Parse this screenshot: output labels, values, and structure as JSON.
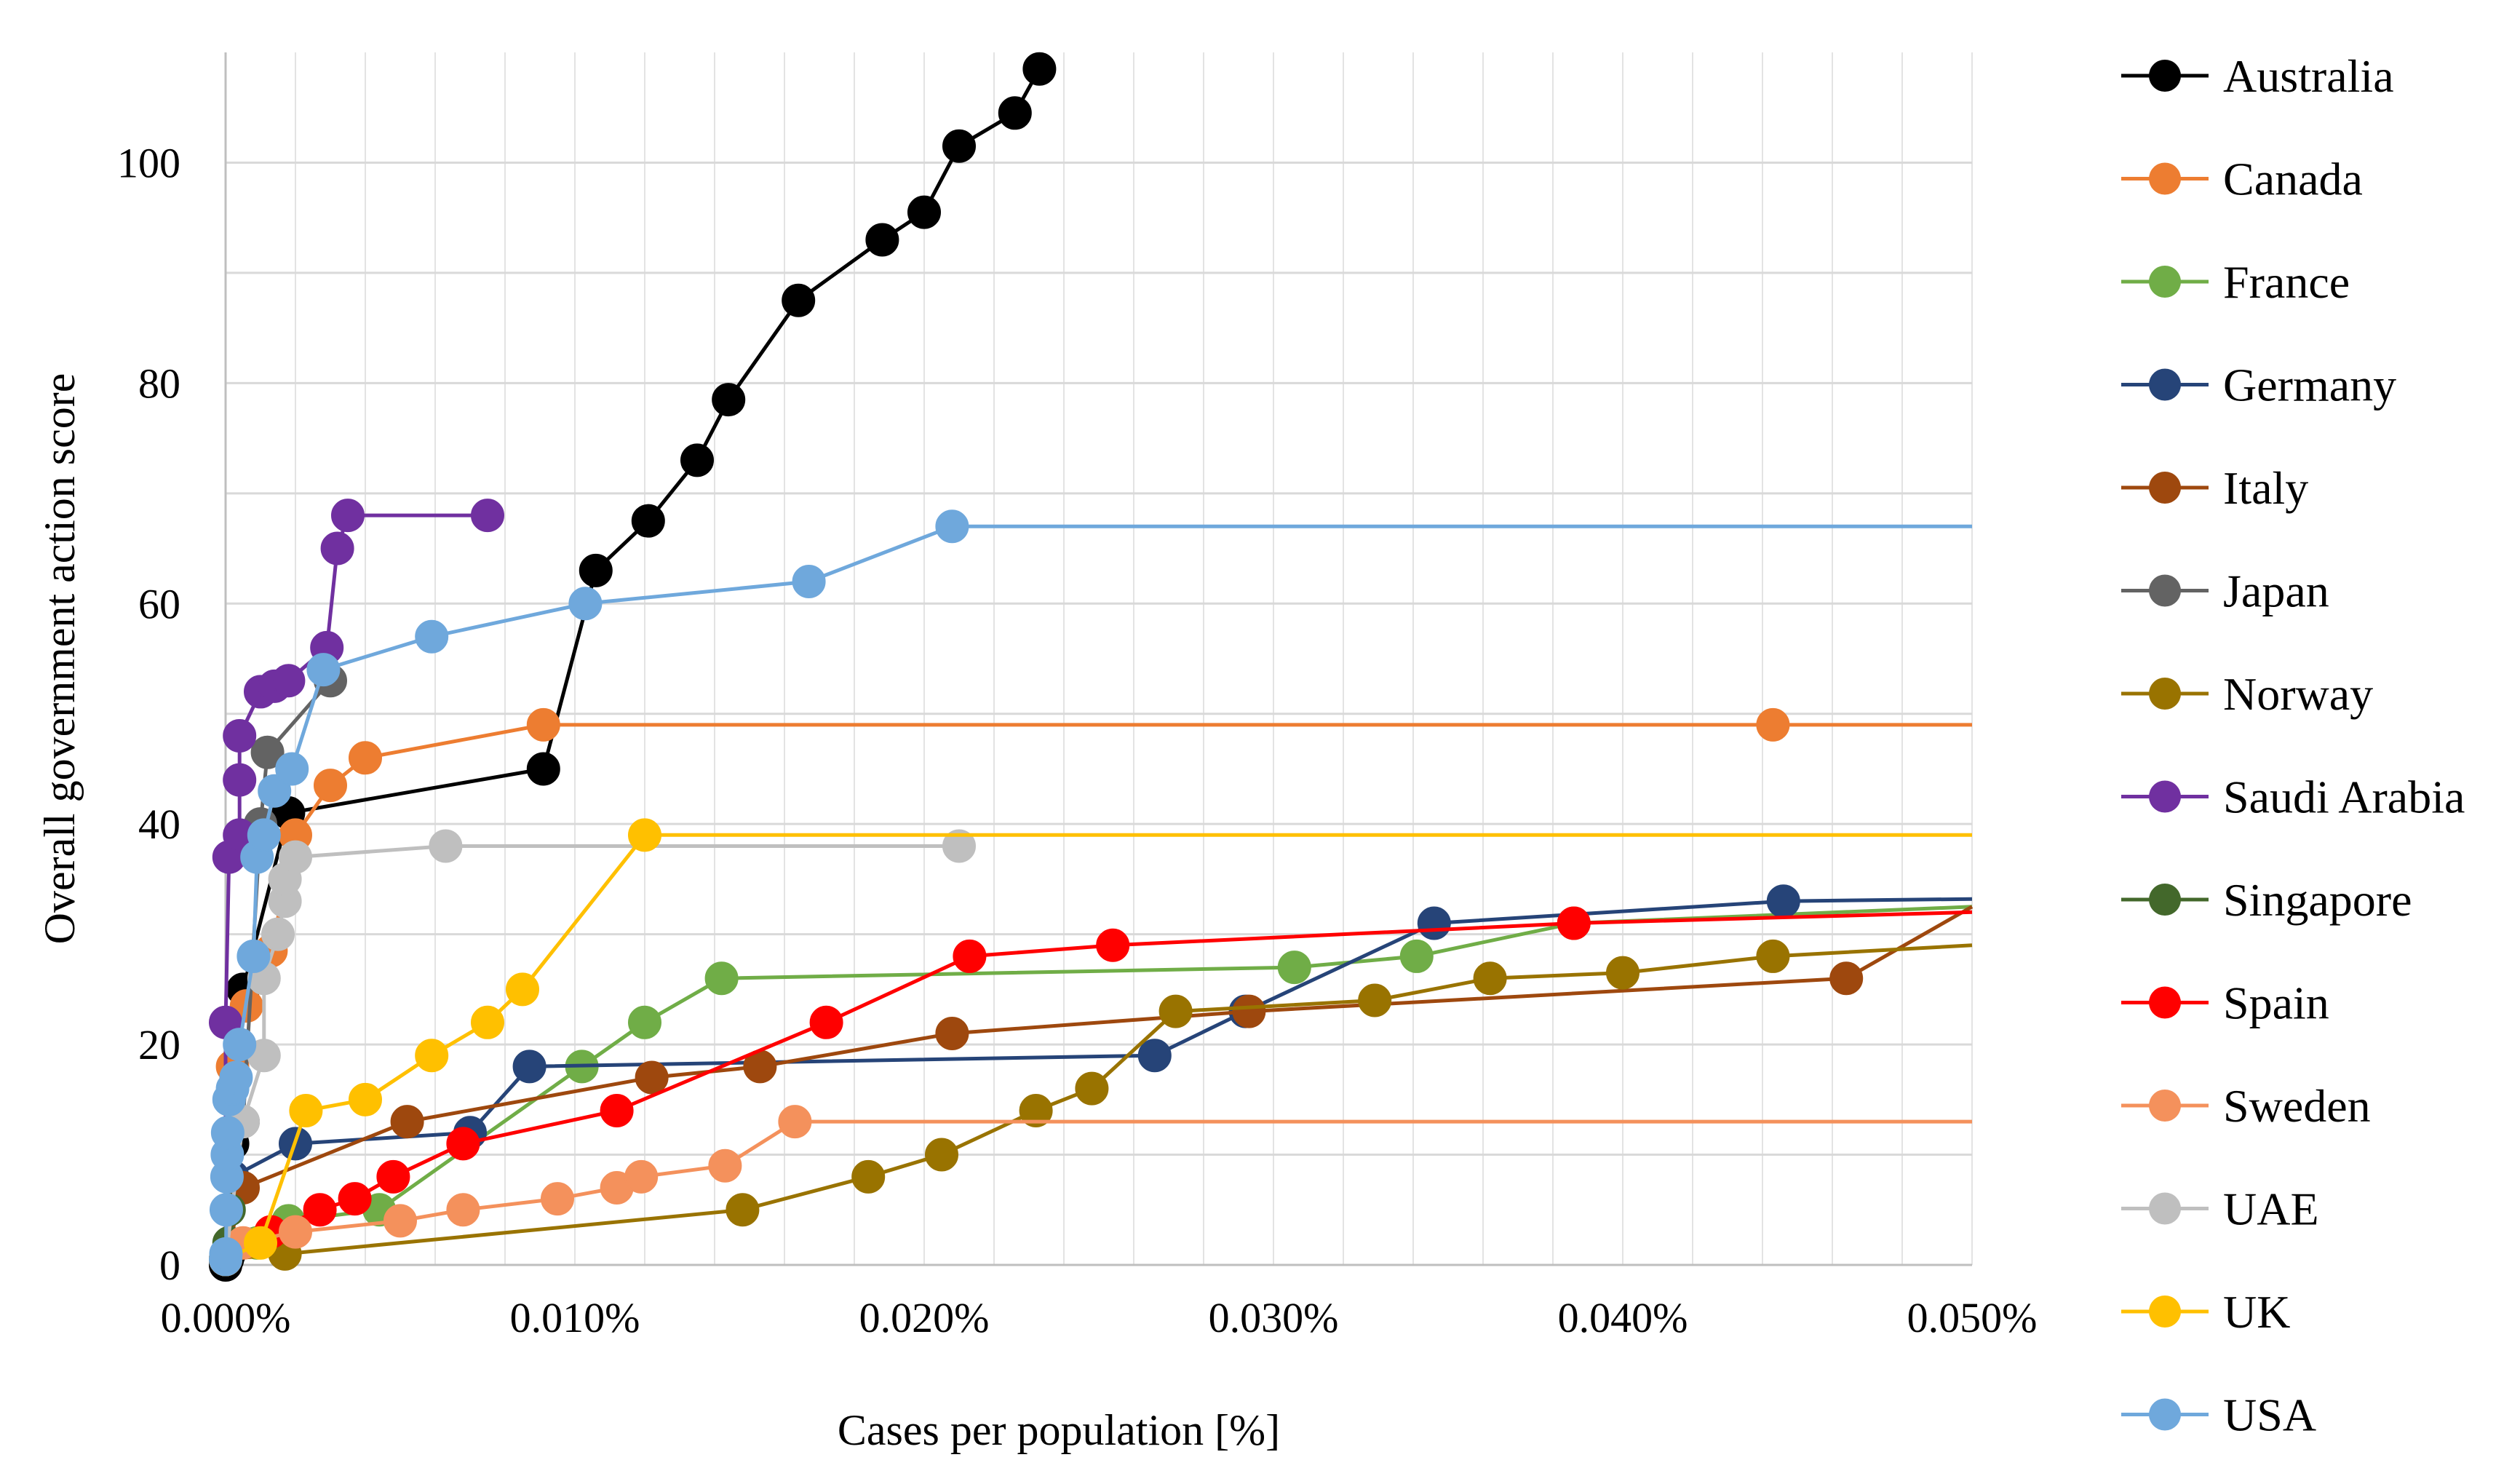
{
  "chart_data": {
    "type": "line",
    "title": "",
    "xlabel": "Cases per population [%]",
    "ylabel": "Overall government  action score",
    "xlim": [
      0,
      0.05
    ],
    "ylim": [
      0,
      110
    ],
    "x_ticks": [
      0,
      0.01,
      0.02,
      0.03,
      0.04,
      0.05
    ],
    "x_tick_labels": [
      "0.000%",
      "0.010%",
      "0.020%",
      "0.030%",
      "0.040%",
      "0.050%"
    ],
    "y_ticks": [
      0,
      20,
      40,
      60,
      80,
      100
    ],
    "y_tick_labels": [
      "0",
      "20",
      "40",
      "60",
      "80",
      "100"
    ],
    "grid": true,
    "legend_position": "right",
    "series": [
      {
        "name": "Australia",
        "color": "#000000",
        "points": [
          [
            0,
            0
          ],
          [
            5e-05,
            0.5
          ],
          [
            0.0001,
            1
          ],
          [
            0.0002,
            11
          ],
          [
            0.0005,
            25
          ],
          [
            0.0018,
            41
          ],
          [
            0.0091,
            45
          ],
          [
            0.0106,
            63
          ],
          [
            0.0121,
            67.5
          ],
          [
            0.0135,
            73
          ],
          [
            0.0144,
            78.5
          ],
          [
            0.0164,
            87.5
          ],
          [
            0.0188,
            93
          ],
          [
            0.02,
            95.5
          ],
          [
            0.021,
            101.5
          ],
          [
            0.0226,
            104.5
          ],
          [
            0.0233,
            108.5
          ]
        ]
      },
      {
        "name": "Canada",
        "color": "#ED7D31",
        "points": [
          [
            0,
            0.5
          ],
          [
            0.0002,
            18
          ],
          [
            0.0006,
            23.5
          ],
          [
            0.0013,
            28.5
          ],
          [
            0.002,
            39
          ],
          [
            0.003,
            43.5
          ],
          [
            0.004,
            46
          ],
          [
            0.0091,
            49
          ],
          [
            0.0443,
            49
          ],
          [
            0.05,
            49
          ]
        ]
      },
      {
        "name": "France",
        "color": "#70AD47",
        "points": [
          [
            0,
            0.5
          ],
          [
            0.0009,
            2
          ],
          [
            0.0018,
            4
          ],
          [
            0.0044,
            5
          ],
          [
            0.0102,
            18
          ],
          [
            0.012,
            22
          ],
          [
            0.0142,
            26
          ],
          [
            0.0306,
            27
          ],
          [
            0.0341,
            28
          ],
          [
            0.0386,
            31
          ],
          [
            0.05,
            32.5
          ]
        ]
      },
      {
        "name": "Germany",
        "color": "#264478",
        "points": [
          [
            0,
            0.5
          ],
          [
            0.0002,
            8
          ],
          [
            0.002,
            11
          ],
          [
            0.007,
            12
          ],
          [
            0.0087,
            18
          ],
          [
            0.0266,
            19
          ],
          [
            0.0292,
            23
          ],
          [
            0.0346,
            31
          ],
          [
            0.0446,
            33
          ],
          [
            0.05,
            33.2
          ]
        ]
      },
      {
        "name": "Italy",
        "color": "#9E480E",
        "points": [
          [
            0,
            0.5
          ],
          [
            0.0005,
            7
          ],
          [
            0.0052,
            13
          ],
          [
            0.0122,
            17
          ],
          [
            0.0153,
            18
          ],
          [
            0.0208,
            21
          ],
          [
            0.0293,
            23
          ],
          [
            0.0464,
            26
          ],
          [
            0.05,
            32.5
          ]
        ]
      },
      {
        "name": "Japan",
        "color": "#636363",
        "points": [
          [
            0,
            0.5
          ],
          [
            0.0005,
            13
          ],
          [
            0.001,
            40
          ],
          [
            0.0012,
            46.5
          ],
          [
            0.003,
            53
          ]
        ]
      },
      {
        "name": "Norway",
        "color": "#997300",
        "points": [
          [
            0,
            0.5
          ],
          [
            0.0017,
            1
          ],
          [
            0.0148,
            5
          ],
          [
            0.0184,
            8
          ],
          [
            0.0205,
            10
          ],
          [
            0.0232,
            14
          ],
          [
            0.0248,
            16
          ],
          [
            0.0272,
            23
          ],
          [
            0.0329,
            24
          ],
          [
            0.0362,
            26
          ],
          [
            0.04,
            26.5
          ],
          [
            0.0443,
            28
          ],
          [
            0.05,
            29
          ]
        ]
      },
      {
        "name": "Saudi Arabia",
        "color": "#7030A0",
        "points": [
          [
            0,
            0.5
          ],
          [
            0,
            22
          ],
          [
            0.0001,
            37
          ],
          [
            0.0004,
            39
          ],
          [
            0.0004,
            44
          ],
          [
            0.0004,
            48
          ],
          [
            0.001,
            52
          ],
          [
            0.0014,
            52.5
          ],
          [
            0.0018,
            53
          ],
          [
            0.0029,
            56
          ],
          [
            0.0032,
            65
          ],
          [
            0.0035,
            68
          ],
          [
            0.0075,
            68
          ]
        ]
      },
      {
        "name": "Singapore",
        "color": "#43682B",
        "points": [
          [
            0,
            0.5
          ],
          [
            0.0001,
            2
          ],
          [
            0.0001,
            5
          ]
        ]
      },
      {
        "name": "Spain",
        "color": "#FF0000",
        "points": [
          [
            0,
            0.5
          ],
          [
            0.0013,
            3
          ],
          [
            0.0027,
            5
          ],
          [
            0.0037,
            6
          ],
          [
            0.0048,
            8
          ],
          [
            0.0068,
            11
          ],
          [
            0.0112,
            14
          ],
          [
            0.0172,
            22
          ],
          [
            0.0213,
            28
          ],
          [
            0.0254,
            29
          ],
          [
            0.0386,
            31
          ],
          [
            0.05,
            32
          ]
        ]
      },
      {
        "name": "Sweden",
        "color": "#F4915C",
        "points": [
          [
            0,
            0.5
          ],
          [
            0.0005,
            2
          ],
          [
            0.002,
            3
          ],
          [
            0.005,
            4
          ],
          [
            0.0068,
            5
          ],
          [
            0.0095,
            6
          ],
          [
            0.0112,
            7
          ],
          [
            0.0119,
            8
          ],
          [
            0.0143,
            9
          ],
          [
            0.0163,
            13
          ],
          [
            0.05,
            13
          ]
        ]
      },
      {
        "name": "UAE",
        "color": "#BFBFBF",
        "points": [
          [
            0,
            0.5
          ],
          [
            0.0005,
            13
          ],
          [
            0.0011,
            19
          ],
          [
            0.0011,
            26
          ],
          [
            0.0015,
            30
          ],
          [
            0.0017,
            33
          ],
          [
            0.0017,
            35
          ],
          [
            0.002,
            37
          ],
          [
            0.0063,
            38
          ],
          [
            0.021,
            38
          ]
        ]
      },
      {
        "name": "UK",
        "color": "#FFC000",
        "points": [
          [
            0,
            0.5
          ],
          [
            0.001,
            2
          ],
          [
            0.0023,
            14
          ],
          [
            0.004,
            15
          ],
          [
            0.0059,
            19
          ],
          [
            0.0075,
            22
          ],
          [
            0.0085,
            25
          ],
          [
            0.012,
            39
          ],
          [
            0.05,
            39
          ]
        ]
      },
      {
        "name": "USA",
        "color": "#6FA8DC",
        "points": [
          [
            0,
            0.5
          ],
          [
            1e-05,
            1
          ],
          [
            2e-05,
            5
          ],
          [
            4e-05,
            8
          ],
          [
            5e-05,
            10
          ],
          [
            6e-05,
            12
          ],
          [
            0.0001,
            15
          ],
          [
            0.0002,
            16
          ],
          [
            0.0003,
            17
          ],
          [
            0.0004,
            20
          ],
          [
            0.0008,
            28
          ],
          [
            0.0009,
            37
          ],
          [
            0.0011,
            39
          ],
          [
            0.0014,
            43
          ],
          [
            0.0019,
            45
          ],
          [
            0.0028,
            54
          ],
          [
            0.0059,
            57
          ],
          [
            0.0103,
            60
          ],
          [
            0.0167,
            62
          ],
          [
            0.0208,
            67
          ],
          [
            0.05,
            67
          ]
        ]
      }
    ]
  }
}
